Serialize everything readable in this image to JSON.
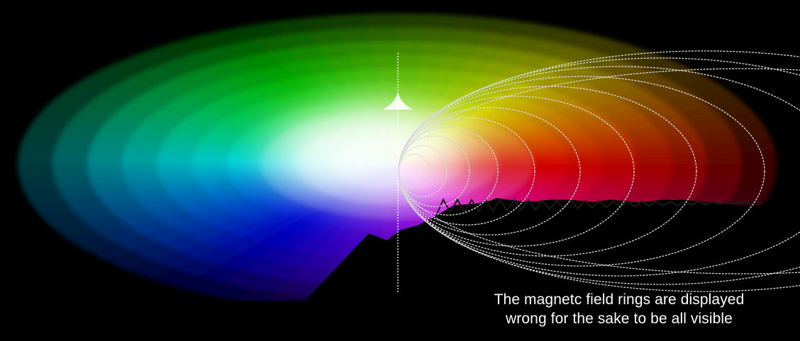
{
  "caption": {
    "line1": "The magnetc field rings are displayed",
    "line2": "wrong for the sake to be all visible"
  },
  "colors": {
    "background": "#000000",
    "caption_text": "#ffffff",
    "field_rings": "#d8d8d8",
    "spectrum": [
      "#ff2020",
      "#ff8a00",
      "#ffe000",
      "#66ff00",
      "#00e0ff",
      "#0040ff",
      "#7a00ff",
      "#ff00c8"
    ]
  }
}
